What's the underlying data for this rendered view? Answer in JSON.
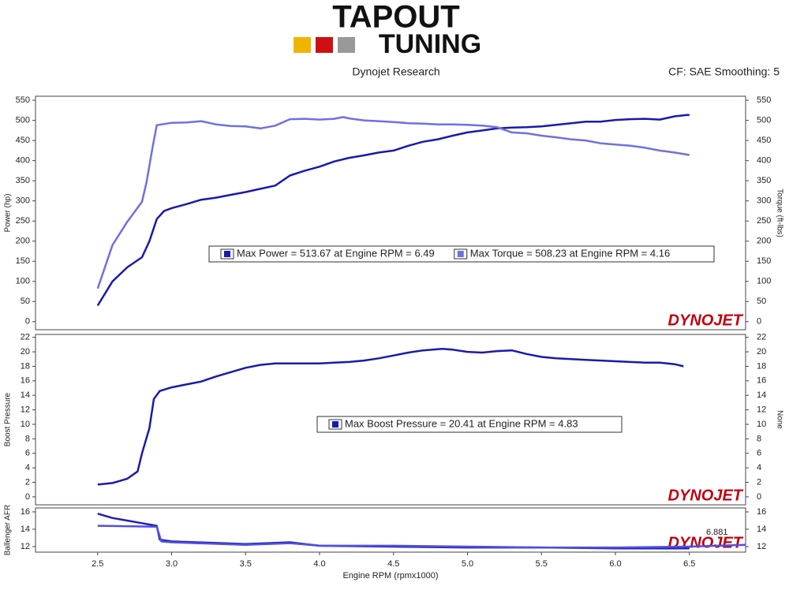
{
  "logo": {
    "line1": "TAPOUT",
    "line2": "TUNING"
  },
  "header": {
    "left": "Dynojet Research",
    "right": "CF: SAE Smoothing: 5"
  },
  "chart_data": [
    {
      "type": "line",
      "ylabel": "Power (hp)",
      "y2label": "Torque (ft-lbs)",
      "watermark": "DYNOJET",
      "xlim": [
        2.08,
        6.88
      ],
      "ylim": [
        -20,
        560
      ],
      "yticks": [
        0,
        50,
        100,
        150,
        200,
        250,
        300,
        350,
        400,
        450,
        500,
        550
      ],
      "y2lim": [
        -20,
        560
      ],
      "y2ticks": [
        0,
        50,
        100,
        150,
        200,
        250,
        300,
        350,
        400,
        450,
        500,
        550
      ],
      "series": [
        {
          "color": "#1a1aaa",
          "x": [
            2.5,
            2.6,
            2.7,
            2.8,
            2.85,
            2.9,
            2.95,
            3.0,
            3.1,
            3.2,
            3.3,
            3.4,
            3.5,
            3.6,
            3.7,
            3.8,
            3.9,
            4.0,
            4.1,
            4.2,
            4.3,
            4.4,
            4.5,
            4.6,
            4.7,
            4.8,
            4.9,
            5.0,
            5.1,
            5.2,
            5.3,
            5.4,
            5.5,
            5.6,
            5.7,
            5.8,
            5.9,
            6.0,
            6.1,
            6.2,
            6.3,
            6.4,
            6.49,
            6.5
          ],
          "values": [
            40,
            100,
            135,
            160,
            200,
            255,
            275,
            282,
            292,
            303,
            308,
            315,
            322,
            330,
            338,
            363,
            375,
            385,
            398,
            407,
            413,
            420,
            425,
            437,
            447,
            453,
            462,
            470,
            475,
            480,
            482,
            483,
            485,
            489,
            493,
            497,
            497,
            501,
            503,
            504,
            502,
            510,
            513.67,
            513
          ]
        },
        {
          "color": "#7070e0",
          "axis": "y2",
          "x": [
            2.5,
            2.6,
            2.7,
            2.8,
            2.83,
            2.87,
            2.9,
            3.0,
            3.1,
            3.2,
            3.3,
            3.4,
            3.5,
            3.6,
            3.7,
            3.8,
            3.9,
            4.0,
            4.1,
            4.16,
            4.2,
            4.3,
            4.4,
            4.5,
            4.6,
            4.7,
            4.8,
            4.9,
            5.0,
            5.1,
            5.2,
            5.3,
            5.4,
            5.5,
            5.6,
            5.7,
            5.8,
            5.9,
            6.0,
            6.1,
            6.2,
            6.3,
            6.4,
            6.5
          ],
          "values": [
            82,
            190,
            248,
            298,
            345,
            430,
            488,
            494,
            495,
            498,
            490,
            486,
            485,
            480,
            487,
            503,
            504,
            502,
            504,
            508.23,
            505,
            500,
            498,
            496,
            493,
            492,
            490,
            490,
            489,
            487,
            483,
            470,
            468,
            462,
            458,
            453,
            450,
            443,
            440,
            437,
            432,
            425,
            420,
            414
          ]
        }
      ],
      "annotations": [
        {
          "text": "Max Power = 513.67 at Engine RPM = 6.49",
          "color": "#1a1aaa"
        },
        {
          "text": "Max Torque = 508.23 at Engine RPM = 4.16",
          "color": "#7070e0"
        }
      ]
    },
    {
      "type": "line",
      "ylabel": "Boost Pressure",
      "y2label": "None",
      "watermark": "DYNOJET",
      "xlim": [
        2.08,
        6.88
      ],
      "ylim": [
        -1.1,
        22.4
      ],
      "yticks": [
        0,
        2,
        4,
        6,
        8,
        10,
        12,
        14,
        16,
        18,
        20,
        22
      ],
      "y2lim": [
        -1.1,
        22.4
      ],
      "y2ticks": [
        0,
        2,
        4,
        6,
        8,
        10,
        12,
        14,
        16,
        18,
        20,
        22
      ],
      "series": [
        {
          "color": "#1a1aaa",
          "x": [
            2.5,
            2.6,
            2.7,
            2.77,
            2.8,
            2.85,
            2.88,
            2.92,
            3.0,
            3.1,
            3.2,
            3.3,
            3.4,
            3.5,
            3.6,
            3.7,
            3.8,
            3.9,
            4.0,
            4.1,
            4.2,
            4.3,
            4.4,
            4.5,
            4.6,
            4.7,
            4.83,
            4.9,
            5.0,
            5.1,
            5.2,
            5.3,
            5.4,
            5.5,
            5.6,
            5.7,
            5.8,
            5.9,
            6.0,
            6.1,
            6.2,
            6.3,
            6.4,
            6.46
          ],
          "values": [
            1.7,
            1.9,
            2.5,
            3.5,
            6,
            9.5,
            13.5,
            14.6,
            15.1,
            15.5,
            15.9,
            16.6,
            17.2,
            17.8,
            18.2,
            18.4,
            18.4,
            18.4,
            18.4,
            18.5,
            18.6,
            18.8,
            19.1,
            19.5,
            19.9,
            20.2,
            20.41,
            20.3,
            20.0,
            19.9,
            20.1,
            20.2,
            19.7,
            19.3,
            19.1,
            19.0,
            18.9,
            18.8,
            18.7,
            18.6,
            18.5,
            18.5,
            18.3,
            18.0
          ]
        }
      ],
      "annotations": [
        {
          "text": "Max Boost Pressure = 20.41 at Engine RPM = 4.83",
          "color": "#1a1aaa"
        }
      ]
    },
    {
      "type": "line",
      "ylabel": "Ballenger AFR",
      "xlabel": "Engine RPM (rpmx1000)",
      "watermark": "DYNOJET",
      "xlim": [
        2.08,
        6.88
      ],
      "ylim": [
        11.36,
        16.45
      ],
      "yticks": [
        12,
        14,
        16
      ],
      "y2lim": [
        11.36,
        16.45
      ],
      "y2ticks": [
        12,
        14,
        16
      ],
      "xticks": [
        2.5,
        {
          "value": 3,
          "label": "3.0"
        },
        3.5,
        {
          "value": 4,
          "label": "4.0"
        },
        4.5,
        {
          "value": 5,
          "label": "5.0"
        },
        5.5,
        {
          "value": 6,
          "label": "6.0"
        },
        6.5
      ],
      "series": [
        {
          "color": "#2020b0",
          "x": [
            2.5,
            2.6,
            2.7,
            2.8,
            2.9,
            2.92,
            3.0,
            3.5,
            3.8,
            4.0,
            4.5,
            5.0,
            5.5,
            6.0,
            6.5
          ],
          "values": [
            15.8,
            15.3,
            15.0,
            14.7,
            14.4,
            12.8,
            12.6,
            12.3,
            12.5,
            12.1,
            12.0,
            11.9,
            11.9,
            11.8,
            11.8
          ]
        },
        {
          "color": "#5050e0",
          "x": [
            2.5,
            2.9,
            2.93,
            3.0,
            3.5,
            3.8,
            4.0,
            4.5,
            5.0,
            5.5,
            6.0,
            6.5,
            6.88
          ],
          "values": [
            14.4,
            14.3,
            12.6,
            12.5,
            12.2,
            12.4,
            12.1,
            12.1,
            12.0,
            11.9,
            11.9,
            12.0,
            12.2
          ]
        }
      ],
      "annotations": [
        {
          "text": "6.881"
        }
      ]
    }
  ]
}
